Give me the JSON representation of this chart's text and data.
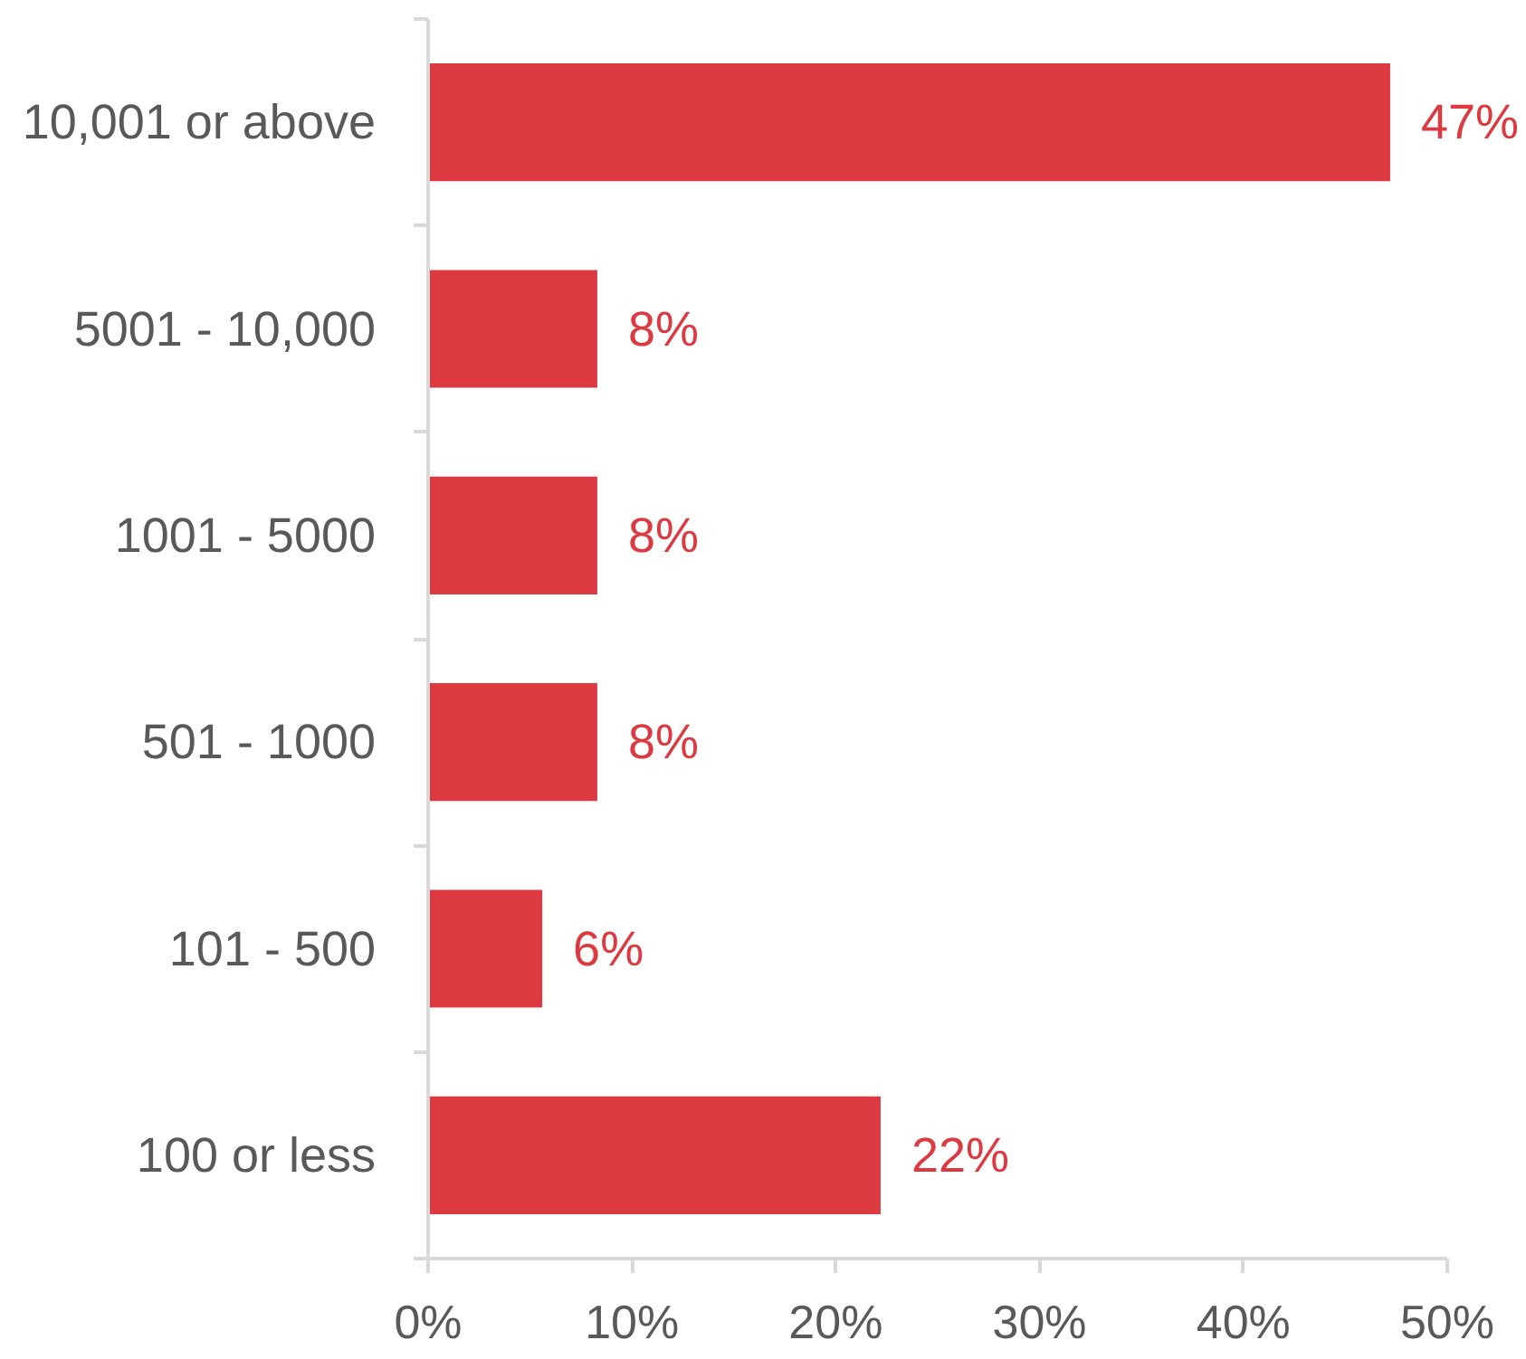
{
  "chart_data": {
    "type": "bar",
    "orientation": "horizontal",
    "categories": [
      "10,001 or above",
      "5001 - 10,000",
      "1001 - 5000",
      "501 - 1000",
      "101 - 500",
      "100 or less"
    ],
    "values": [
      47.2,
      8.3,
      8.3,
      8.3,
      5.6,
      22.2
    ],
    "value_labels": [
      "47%",
      "8%",
      "8%",
      "8%",
      "6%",
      "22%"
    ],
    "color": "#dc3a40",
    "xlim": [
      0,
      50
    ],
    "xticks": [
      {
        "value": 0,
        "label": "0%"
      },
      {
        "value": 10,
        "label": "10%"
      },
      {
        "value": 20,
        "label": "20%"
      },
      {
        "value": 30,
        "label": "30%"
      },
      {
        "value": 40,
        "label": "40%"
      },
      {
        "value": 50,
        "label": "50%"
      }
    ]
  }
}
